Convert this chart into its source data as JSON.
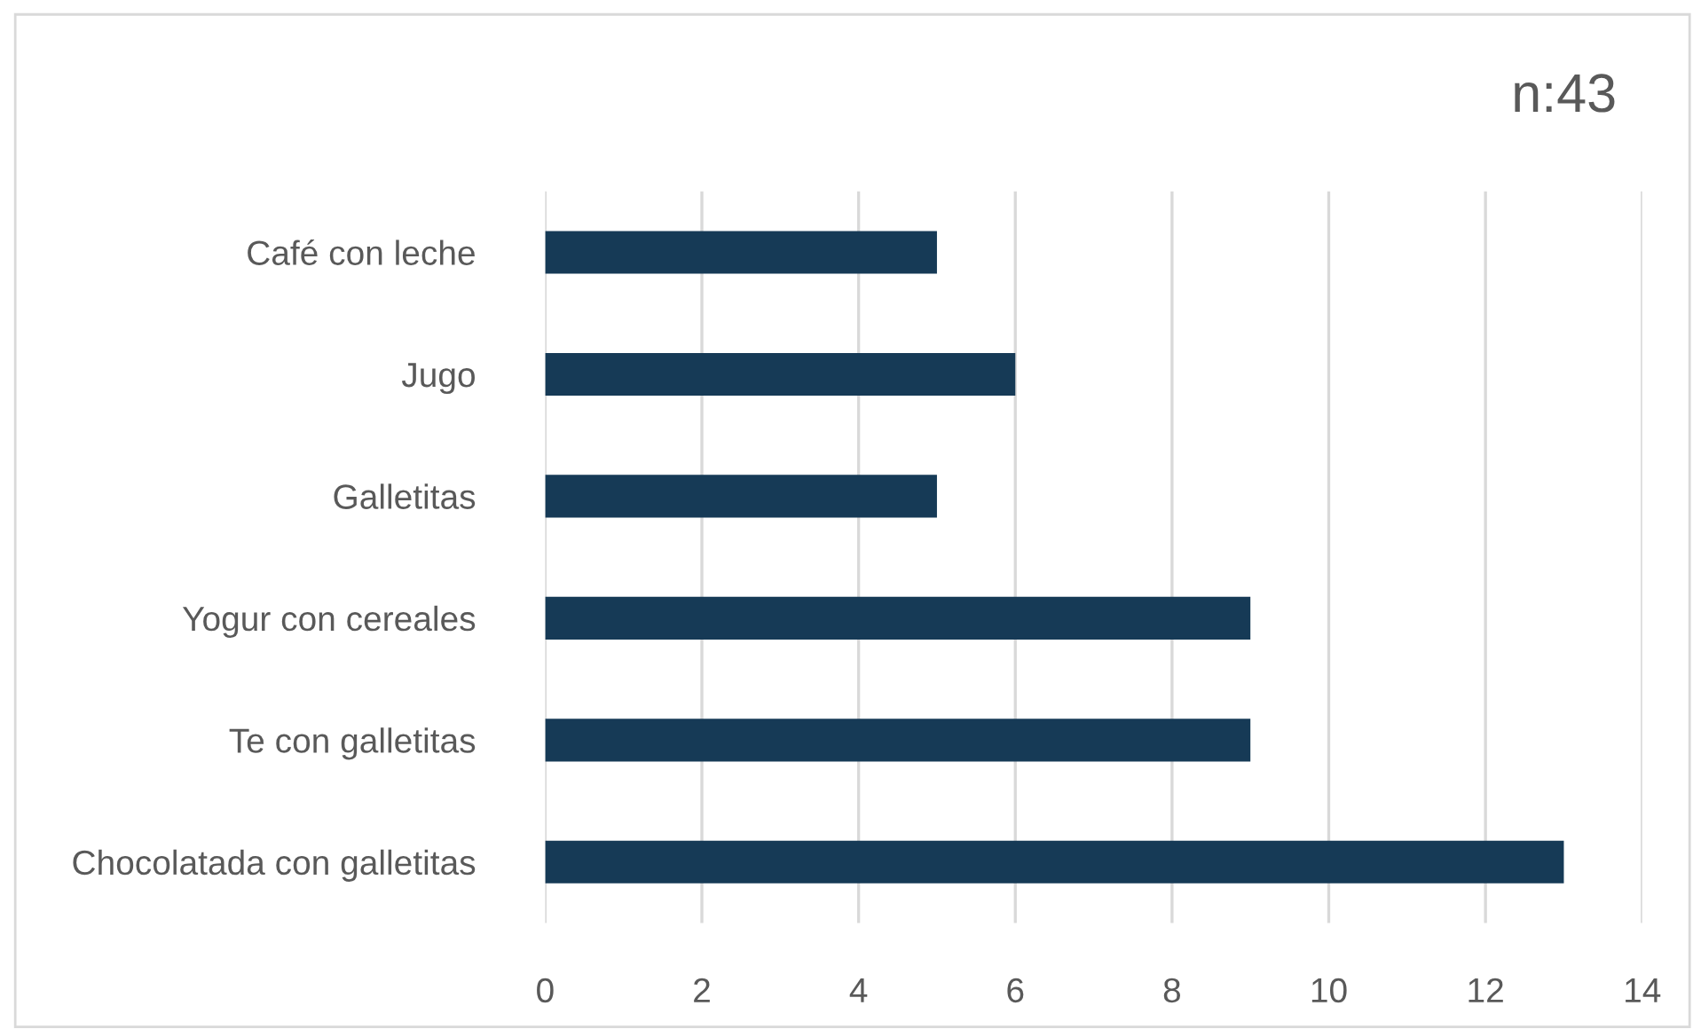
{
  "chart_data": {
    "type": "bar",
    "orientation": "horizontal",
    "categories": [
      "Café con leche",
      "Jugo",
      "Galletitas",
      "Yogur con cereales",
      "Te con galletitas",
      "Chocolatada con galletitas"
    ],
    "values": [
      5,
      6,
      5,
      9,
      9,
      13
    ],
    "color": "#163a56",
    "xlim": [
      0,
      14
    ],
    "xticks": [
      0,
      2,
      4,
      6,
      8,
      10,
      12,
      14
    ],
    "grid": "x",
    "annotations": [
      "n:43"
    ]
  }
}
